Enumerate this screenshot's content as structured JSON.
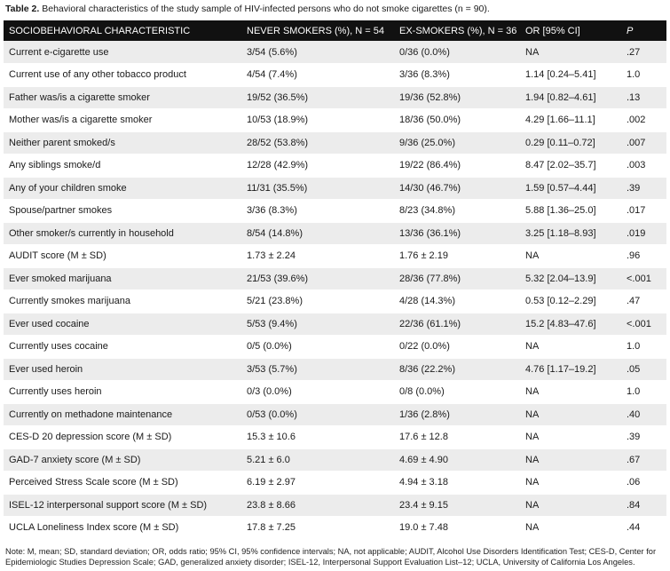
{
  "caption": {
    "label": "Table 2.",
    "text": "Behavioral characteristics of the study sample of HIV-infected persons who do not smoke cigarettes (n = 90)."
  },
  "columns": [
    "SOCIOBEHAVIORAL CHARACTERISTIC",
    "NEVER SMOKERS (%), N = 54",
    "EX-SMOKERS (%), N = 36",
    "OR [95% CI]",
    "P"
  ],
  "rows": [
    [
      "Current e-cigarette use",
      "3/54 (5.6%)",
      "0/36 (0.0%)",
      "NA",
      ".27"
    ],
    [
      "Current use of any other tobacco product",
      "4/54 (7.4%)",
      "3/36 (8.3%)",
      "1.14 [0.24–5.41]",
      "1.0"
    ],
    [
      "Father was/is a cigarette smoker",
      "19/52 (36.5%)",
      "19/36 (52.8%)",
      "1.94 [0.82–4.61]",
      ".13"
    ],
    [
      "Mother was/is a cigarette smoker",
      "10/53 (18.9%)",
      "18/36 (50.0%)",
      "4.29 [1.66–11.1]",
      ".002"
    ],
    [
      "Neither parent smoked/s",
      "28/52 (53.8%)",
      "9/36 (25.0%)",
      "0.29 [0.11–0.72]",
      ".007"
    ],
    [
      "Any siblings smoke/d",
      "12/28 (42.9%)",
      "19/22 (86.4%)",
      "8.47 [2.02–35.7]",
      ".003"
    ],
    [
      "Any of your children smoke",
      "11/31 (35.5%)",
      "14/30 (46.7%)",
      "1.59 [0.57–4.44]",
      ".39"
    ],
    [
      "Spouse/partner smokes",
      "3/36 (8.3%)",
      "8/23 (34.8%)",
      "5.88 [1.36–25.0]",
      ".017"
    ],
    [
      "Other smoker/s currently in household",
      "8/54 (14.8%)",
      "13/36 (36.1%)",
      "3.25 [1.18–8.93]",
      ".019"
    ],
    [
      "AUDIT score (M ± SD)",
      "1.73 ± 2.24",
      "1.76 ± 2.19",
      "NA",
      ".96"
    ],
    [
      "Ever smoked marijuana",
      "21/53 (39.6%)",
      "28/36 (77.8%)",
      "5.32 [2.04–13.9]",
      "<.001"
    ],
    [
      "Currently smokes marijuana",
      "5/21 (23.8%)",
      "4/28 (14.3%)",
      "0.53 [0.12–2.29]",
      ".47"
    ],
    [
      "Ever used cocaine",
      "5/53 (9.4%)",
      "22/36 (61.1%)",
      "15.2 [4.83–47.6]",
      "<.001"
    ],
    [
      "Currently uses cocaine",
      "0/5 (0.0%)",
      "0/22 (0.0%)",
      "NA",
      "1.0"
    ],
    [
      "Ever used heroin",
      "3/53 (5.7%)",
      "8/36 (22.2%)",
      "4.76 [1.17–19.2]",
      ".05"
    ],
    [
      "Currently uses heroin",
      "0/3 (0.0%)",
      "0/8 (0.0%)",
      "NA",
      "1.0"
    ],
    [
      "Currently on methadone maintenance",
      "0/53 (0.0%)",
      "1/36 (2.8%)",
      "NA",
      ".40"
    ],
    [
      "CES-D 20 depression score (M ± SD)",
      "15.3 ± 10.6",
      "17.6 ± 12.8",
      "NA",
      ".39"
    ],
    [
      "GAD-7 anxiety score (M ± SD)",
      "5.21 ± 6.0",
      "4.69 ± 4.90",
      "NA",
      ".67"
    ],
    [
      "Perceived Stress Scale score (M ± SD)",
      "6.19 ± 2.97",
      "4.94 ± 3.18",
      "NA",
      ".06"
    ],
    [
      "ISEL-12 interpersonal support score (M ± SD)",
      "23.8 ± 8.66",
      "23.4 ± 9.15",
      "NA",
      ".84"
    ],
    [
      "UCLA Loneliness Index score (M ± SD)",
      "17.8 ± 7.25",
      "19.0 ± 7.48",
      "NA",
      ".44"
    ]
  ],
  "note": "Note: M, mean; SD, standard deviation; OR, odds ratio; 95% CI, 95% confidence intervals; NA, not applicable; AUDIT, Alcohol Use Disorders Identification Test; CES-D, Center for Epidemiologic Studies Depression Scale; GAD, generalized anxiety disorder; ISEL-12, Interpersonal Support Evaluation List–12; UCLA, University of California Los Angeles."
}
